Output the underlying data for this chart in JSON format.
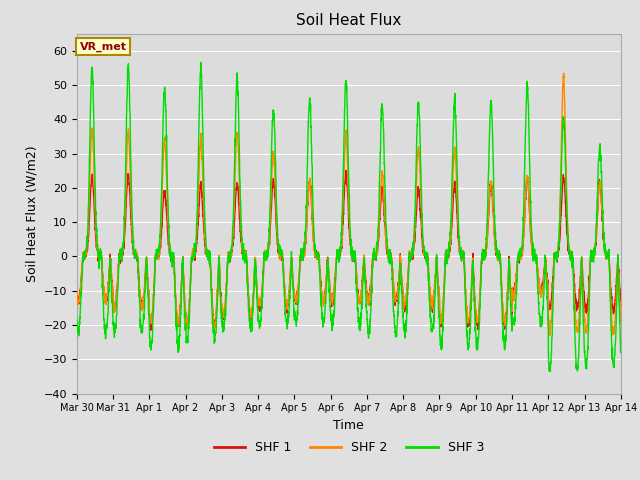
{
  "title": "Soil Heat Flux",
  "ylabel": "Soil Heat Flux (W/m2)",
  "xlabel": "Time",
  "ylim": [
    -40,
    65
  ],
  "yticks": [
    -40,
    -30,
    -20,
    -10,
    0,
    10,
    20,
    30,
    40,
    50,
    60
  ],
  "background_color": "#e0e0e0",
  "plot_bg_color": "#dcdcdc",
  "grid_color": "#ffffff",
  "line_colors": {
    "shf1": "#dd1111",
    "shf2": "#ff8800",
    "shf3": "#00dd00"
  },
  "line_width": 1.0,
  "legend_labels": [
    "SHF 1",
    "SHF 2",
    "SHF 3"
  ],
  "annotation_text": "VR_met",
  "annotation_box_color": "#ffffcc",
  "annotation_box_edge": "#aa8800",
  "x_tick_labels": [
    "Mar 30",
    "Mar 31",
    "Apr 1",
    "Apr 2",
    "Apr 3",
    "Apr 4",
    "Apr 5",
    "Apr 6",
    "Apr 7",
    "Apr 8",
    "Apr 9",
    "Apr 10",
    "Apr 11",
    "Apr 12",
    "Apr 13",
    "Apr 14"
  ],
  "n_points": 2880,
  "days": 15,
  "figsize": [
    6.4,
    4.8
  ],
  "dpi": 100
}
